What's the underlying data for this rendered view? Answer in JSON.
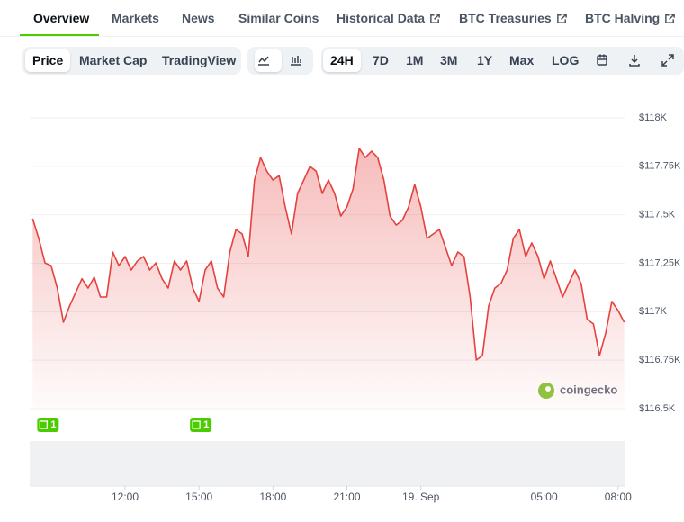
{
  "ui": {
    "tabs": [
      "Overview",
      "Markets",
      "News",
      "Similar Coins",
      "Historical Data",
      "BTC Treasuries",
      "BTC Halving"
    ],
    "active_tab": 0,
    "external_tabs": [
      4,
      5,
      6
    ],
    "views": [
      "Price",
      "Market Cap",
      "TradingView"
    ],
    "active_view": 0,
    "ranges": [
      "24H",
      "7D",
      "1M",
      "3M",
      "1Y",
      "Max",
      "LOG"
    ],
    "active_range": 0,
    "watermark": "coingecko"
  },
  "chart_data": {
    "type": "area",
    "x": [
      8.25,
      8.5,
      8.75,
      9,
      9.25,
      9.5,
      9.75,
      10,
      10.25,
      10.5,
      10.75,
      11,
      11.25,
      11.5,
      11.75,
      12,
      12.25,
      12.5,
      12.75,
      13,
      13.25,
      13.5,
      13.75,
      14,
      14.25,
      14.5,
      14.75,
      15,
      15.25,
      15.5,
      15.75,
      16,
      16.25,
      16.5,
      16.75,
      17,
      17.25,
      17.5,
      17.75,
      18,
      18.25,
      18.5,
      18.75,
      19,
      19.25,
      19.5,
      19.75,
      20,
      20.25,
      20.5,
      20.75,
      21,
      21.25,
      21.5,
      21.75,
      22,
      22.25,
      22.5,
      22.75,
      23,
      23.25,
      23.5,
      23.75,
      24,
      24.25,
      24.5,
      24.75,
      25,
      25.25,
      25.5,
      25.75,
      26,
      26.25,
      26.5,
      26.75,
      27,
      27.25,
      27.5,
      27.75,
      28,
      28.25,
      28.5,
      28.75,
      29,
      29.25,
      29.5,
      29.75,
      30,
      30.25,
      30.5,
      30.75,
      31,
      31.25,
      31.5,
      31.75,
      32,
      32.25
    ],
    "series": [
      {
        "name": "Price",
        "color": "#e5413e",
        "values": [
          117480,
          117378,
          117252,
          117238,
          117122,
          116946,
          117030,
          117100,
          117170,
          117122,
          117178,
          117076,
          117076,
          117308,
          117238,
          117285,
          117215,
          117262,
          117285,
          117215,
          117252,
          117170,
          117122,
          117262,
          117215,
          117262,
          117122,
          117053,
          117215,
          117262,
          117122,
          117076,
          117308,
          117424,
          117401,
          117285,
          117679,
          117795,
          117725,
          117679,
          117702,
          117540,
          117401,
          117610,
          117679,
          117749,
          117725,
          117610,
          117679,
          117610,
          117494,
          117540,
          117633,
          117842,
          117795,
          117828,
          117795,
          117679,
          117494,
          117447,
          117471,
          117540,
          117656,
          117540,
          117378,
          117401,
          117424,
          117331,
          117238,
          117308,
          117285,
          117076,
          116751,
          116774,
          117030,
          117122,
          117146,
          117215,
          117378,
          117424,
          117285,
          117355,
          117285,
          117170,
          117262,
          117170,
          117076,
          117146,
          117215,
          117146,
          116960,
          116937,
          116774,
          116891,
          117053,
          117006,
          116946
        ]
      }
    ],
    "xlim": [
      8.13,
      32.3
    ],
    "xticks": [
      {
        "value": 12,
        "label": "12:00"
      },
      {
        "value": 15,
        "label": "15:00"
      },
      {
        "value": 18,
        "label": "18:00"
      },
      {
        "value": 21,
        "label": "21:00"
      },
      {
        "value": 24,
        "label": "19. Sep"
      },
      {
        "value": 29,
        "label": "05:00"
      },
      {
        "value": 32,
        "label": "08:00"
      }
    ],
    "ylim": [
      116500,
      118000
    ],
    "yticks": [
      {
        "value": 116500,
        "label": "$116.5K"
      },
      {
        "value": 116750,
        "label": "$116.75K"
      },
      {
        "value": 117000,
        "label": "$117K"
      },
      {
        "value": 117250,
        "label": "$117.25K"
      },
      {
        "value": 117500,
        "label": "$117.5K"
      },
      {
        "value": 117750,
        "label": "$117.75K"
      },
      {
        "value": 118000,
        "label": "$118K"
      }
    ],
    "grid": true,
    "annotations": [
      {
        "x": 8.8,
        "label": "1"
      },
      {
        "x": 15,
        "label": "1"
      }
    ]
  }
}
